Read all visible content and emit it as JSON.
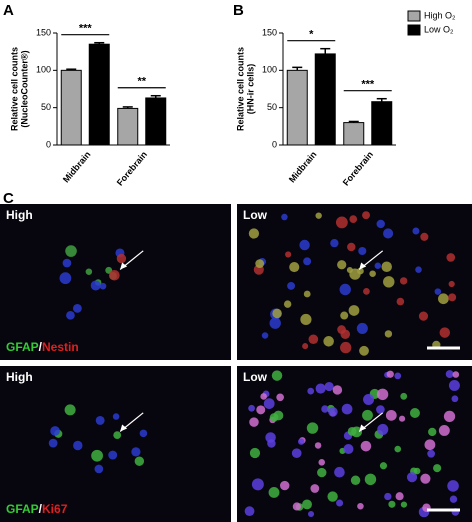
{
  "chart_data": [
    {
      "type": "bar",
      "label": "A",
      "ylabel": [
        "Relative cell counts",
        "(NucleoCounter®)"
      ],
      "categories": [
        "Midbrain",
        "Forebrain"
      ],
      "series": [
        {
          "name": "High O₂",
          "color": "#a6a6a6",
          "values": [
            100,
            49
          ],
          "errors": [
            1.5,
            2
          ]
        },
        {
          "name": "Low O₂",
          "color": "#000000",
          "values": [
            135,
            63
          ],
          "errors": [
            2,
            3
          ]
        }
      ],
      "significance": [
        "***",
        "**"
      ],
      "ylim": [
        0,
        150
      ],
      "yticks": [
        0,
        50,
        100,
        150
      ]
    },
    {
      "type": "bar",
      "label": "B",
      "ylabel": [
        "Relative cell counts",
        "(HN-ir cells)"
      ],
      "categories": [
        "Midbrain",
        "Forebrain"
      ],
      "series": [
        {
          "name": "High O₂",
          "color": "#a6a6a6",
          "values": [
            100,
            30
          ],
          "errors": [
            4,
            1.5
          ]
        },
        {
          "name": "Low O₂",
          "color": "#000000",
          "values": [
            122,
            58
          ],
          "errors": [
            7,
            4
          ]
        }
      ],
      "significance": [
        "*",
        "***"
      ],
      "ylim": [
        0,
        150
      ],
      "yticks": [
        0,
        50,
        100,
        150
      ],
      "legend": "top-right"
    }
  ],
  "panel_c": {
    "label": "C",
    "images": [
      {
        "condition": "High",
        "stain": [
          "GFAP",
          "/",
          "Nestin"
        ]
      },
      {
        "condition": "Low"
      },
      {
        "condition": "High",
        "stain": [
          "GFAP",
          "/",
          "Ki67"
        ]
      },
      {
        "condition": "Low"
      }
    ]
  }
}
